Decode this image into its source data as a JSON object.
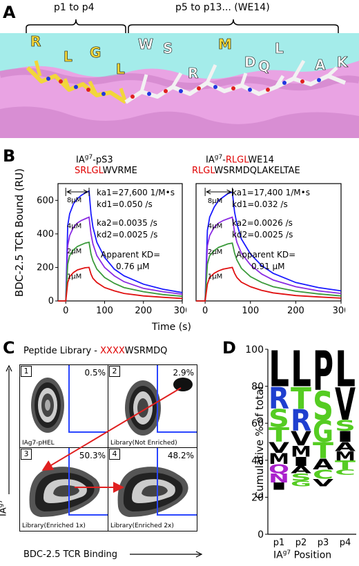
{
  "panel_a": {
    "letter": "A",
    "group1_label": "p1 to p4",
    "group2_label": "p5 to p13... (WE14)",
    "residues_yellow": [
      "R",
      "L",
      "G",
      "L"
    ],
    "residues_white": [
      "W",
      "S",
      "R",
      "M",
      "D",
      "Q",
      "L",
      "A",
      "K"
    ]
  },
  "panel_b": {
    "letter": "B",
    "ylabel": "BDC-2.5 TCR Bound (RU)",
    "xlabel": "Time (s)",
    "left": {
      "title_main": "IA",
      "title_sup": "g7",
      "title_rest": "-pS3",
      "seq_red": "SRLGL",
      "seq_black": "WVRME",
      "ka1": "ka1=27,600  1/M•s",
      "kd1": "kd1=0.050  /s",
      "ka2": "ka2=0.0035  /s",
      "kd2": "kd2=0.0025  /s",
      "kd_label": "Apparent KD=",
      "kd_value": "0.76  μM"
    },
    "right": {
      "title_main": "IA",
      "title_sup": "g7",
      "title_dash": "-",
      "title_red": "RLGL",
      "title_rest": "WE14",
      "seq_red": "RLGL",
      "seq_black": "WSRMDQLAKELTAE",
      "ka1": "ka1=17,400  1/M•s",
      "kd1": "kd1=0.032  /s",
      "ka2": "ka2=0.0026  /s",
      "kd2": "kd2=0.0025  /s",
      "kd_label": "Apparent KD=",
      "kd_value": "0.91  μM"
    },
    "conc_labels": [
      "8μM",
      "4μM",
      "2μM",
      "1μM"
    ],
    "colors": [
      "#1a1aff",
      "#8a2be2",
      "#3a9a3a",
      "#e01010"
    ]
  },
  "chart_data": [
    {
      "type": "line",
      "title": "IAg7-pS3 SRLGLWVRME",
      "xlabel": "Time (s)",
      "ylabel": "BDC-2.5 TCR Bound (RU)",
      "xlim": [
        -20,
        300
      ],
      "ylim": [
        0,
        700
      ],
      "xticks": [
        0,
        100,
        200,
        300
      ],
      "yticks": [
        0,
        200,
        400,
        600
      ],
      "x": [
        -20,
        0,
        5,
        10,
        20,
        30,
        40,
        50,
        60,
        65,
        70,
        80,
        100,
        125,
        150,
        200,
        250,
        300
      ],
      "series": [
        {
          "name": "8μM",
          "values": [
            0,
            0,
            450,
            520,
            580,
            610,
            630,
            645,
            655,
            520,
            440,
            350,
            260,
            190,
            150,
            100,
            70,
            50
          ]
        },
        {
          "name": "4μM",
          "values": [
            0,
            0,
            330,
            390,
            440,
            465,
            480,
            490,
            500,
            400,
            340,
            270,
            200,
            150,
            115,
            75,
            55,
            40
          ]
        },
        {
          "name": "2μM",
          "values": [
            0,
            0,
            220,
            270,
            305,
            325,
            335,
            345,
            350,
            280,
            240,
            190,
            140,
            105,
            80,
            55,
            38,
            28
          ]
        },
        {
          "name": "1μM",
          "values": [
            0,
            0,
            110,
            145,
            170,
            185,
            192,
            198,
            200,
            160,
            135,
            110,
            80,
            60,
            45,
            30,
            22,
            15
          ]
        }
      ]
    },
    {
      "type": "line",
      "title": "IAg7-RLGLWE14 RLGLWSRMDQLAKELTAE",
      "xlabel": "Time (s)",
      "ylabel": "",
      "xlim": [
        -20,
        300
      ],
      "ylim": [
        0,
        700
      ],
      "xticks": [
        0,
        100,
        200,
        300
      ],
      "yticks": [],
      "x": [
        -20,
        0,
        5,
        10,
        20,
        30,
        40,
        50,
        60,
        65,
        70,
        80,
        100,
        125,
        150,
        200,
        250,
        300
      ],
      "series": [
        {
          "name": "8μM",
          "values": [
            0,
            0,
            420,
            500,
            560,
            600,
            620,
            640,
            650,
            530,
            460,
            370,
            280,
            210,
            165,
            110,
            80,
            60
          ]
        },
        {
          "name": "4μM",
          "values": [
            0,
            0,
            330,
            390,
            440,
            465,
            480,
            490,
            500,
            410,
            350,
            285,
            215,
            160,
            125,
            85,
            60,
            45
          ]
        },
        {
          "name": "2μM",
          "values": [
            0,
            0,
            220,
            270,
            300,
            320,
            330,
            340,
            345,
            285,
            245,
            195,
            145,
            110,
            85,
            58,
            42,
            30
          ]
        },
        {
          "name": "1μM",
          "values": [
            0,
            0,
            100,
            140,
            165,
            180,
            190,
            195,
            200,
            165,
            140,
            112,
            85,
            63,
            48,
            32,
            24,
            17
          ]
        }
      ]
    },
    {
      "type": "bar",
      "title": "",
      "xlabel": "IAg7 Position",
      "ylabel": "Cumulative % of total",
      "ylim": [
        0,
        100
      ],
      "yticks": [
        0,
        20,
        40,
        60,
        80,
        100
      ],
      "categories": [
        "p1",
        "p2",
        "p3",
        "p4"
      ],
      "letters": [
        [
          [
            "L",
            20,
            "#000000"
          ],
          [
            "R",
            12,
            "#1f3fcf"
          ],
          [
            "S",
            10,
            "#55cc22"
          ],
          [
            "T",
            8,
            "#55cc22"
          ],
          [
            "M",
            6,
            "#000000"
          ],
          [
            "V",
            6,
            "#000000"
          ],
          [
            "N",
            5,
            "#aa22cc"
          ],
          [
            "Q",
            5,
            "#aa22cc"
          ],
          [
            "I",
            4,
            "#000000"
          ]
        ],
        [
          [
            "L",
            20,
            "#000000"
          ],
          [
            "R",
            12,
            "#1f3fcf"
          ],
          [
            "T",
            12,
            "#55cc22"
          ],
          [
            "V",
            8,
            "#000000"
          ],
          [
            "M",
            6,
            "#000000"
          ],
          [
            "I",
            5,
            "#000000"
          ],
          [
            "S",
            4,
            "#55cc22"
          ],
          [
            "A",
            4,
            "#000000"
          ],
          [
            "G",
            3,
            "#55cc22"
          ]
        ],
        [
          [
            "P",
            22,
            "#000000"
          ],
          [
            "S",
            16,
            "#55cc22"
          ],
          [
            "G",
            12,
            "#55cc22"
          ],
          [
            "T",
            9,
            "#55cc22"
          ],
          [
            "A",
            6,
            "#000000"
          ],
          [
            "C",
            5,
            "#55cc22"
          ],
          [
            "V",
            4,
            "#000000"
          ]
        ],
        [
          [
            "L",
            20,
            "#000000"
          ],
          [
            "V",
            18,
            "#000000"
          ],
          [
            "I",
            6,
            "#000000"
          ],
          [
            "S",
            6,
            "#55cc22"
          ],
          [
            "T",
            5,
            "#55cc22"
          ],
          [
            "M",
            5,
            "#000000"
          ],
          [
            "A",
            5,
            "#000000"
          ],
          [
            "C",
            3,
            "#55cc22"
          ]
        ]
      ]
    }
  ],
  "panel_c": {
    "letter": "C",
    "title_black": "Peptide Library - ",
    "title_red": "XXXX",
    "title_rest": "WSRMDQ",
    "ylabel_main": "IA",
    "ylabel_sup": "g7",
    "xlabel": "BDC-2.5 TCR Binding",
    "plots": [
      {
        "num": "1",
        "pct": "0.5%",
        "caption": "IAg7-pHEL"
      },
      {
        "num": "2",
        "pct": "2.9%",
        "caption": "Library(Not Enriched)"
      },
      {
        "num": "3",
        "pct": "50.3%",
        "caption": "Library(Enriched 1x)"
      },
      {
        "num": "4",
        "pct": "48.2%",
        "caption": "Library(Enriched 2x)"
      }
    ]
  },
  "panel_d": {
    "letter": "D",
    "ylabel": "Cumulative % of total",
    "xlabel_main": "IA",
    "xlabel_sup": "g7",
    "xlabel_rest": " Position"
  }
}
